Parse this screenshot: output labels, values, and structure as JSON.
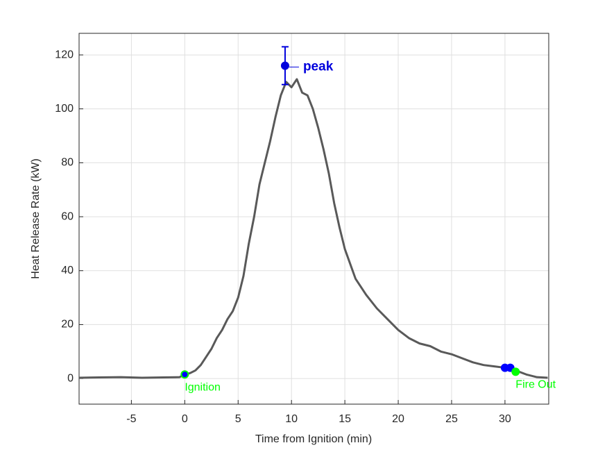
{
  "chart_data": {
    "type": "line",
    "xlabel": "Time from Ignition (min)",
    "ylabel": "Heat Release Rate (kW)",
    "x": [
      -9.9,
      -8,
      -6,
      -4,
      -2,
      -0.5,
      0,
      0.5,
      1,
      1.5,
      2,
      2.5,
      3,
      3.5,
      4,
      4.5,
      5,
      5.5,
      6,
      6.5,
      7,
      7.5,
      8,
      8.5,
      9,
      9.5,
      10,
      10.5,
      11,
      11.5,
      12,
      12.5,
      13,
      13.5,
      14,
      14.5,
      15,
      16,
      17,
      18,
      19,
      20,
      21,
      22,
      23,
      24,
      25,
      26,
      27,
      28,
      29,
      30,
      31,
      32,
      33,
      34
    ],
    "series": [
      {
        "color": "#595959",
        "values": [
          0.3,
          0.4,
          0.5,
          0.3,
          0.4,
          0.5,
          1.5,
          2,
          3,
          5,
          8,
          11,
          15,
          18,
          22,
          25,
          30,
          38,
          50,
          60,
          72,
          80,
          88,
          97,
          105,
          110,
          108,
          111,
          106,
          105,
          100,
          93,
          85,
          76,
          65,
          56,
          48,
          37,
          31,
          26,
          22,
          18,
          15,
          13,
          12,
          10,
          9,
          7.5,
          6,
          5,
          4.5,
          4,
          3,
          1.5,
          0.5,
          0.3
        ]
      }
    ],
    "markers": [
      {
        "x": 0,
        "y": 1.5,
        "color": "#0000ff",
        "edgecolor": "#00ff00",
        "label": "Ignition"
      },
      {
        "x": 9.4,
        "y": 116,
        "error": 7,
        "color": "#0000dd",
        "label": "peak"
      },
      {
        "x": 30,
        "y": 4,
        "color": "#0000ff"
      },
      {
        "x": 30.5,
        "y": 4,
        "color": "#0000ff"
      },
      {
        "x": 31,
        "y": 2.5,
        "color": "#00ff00",
        "label": "Fire Out"
      }
    ],
    "xlim": [
      -9.9,
      34.1
    ],
    "ylim": [
      -9.5,
      128
    ],
    "xticks": [
      -5,
      0,
      5,
      10,
      15,
      20,
      25,
      30
    ],
    "yticks": [
      0,
      20,
      40,
      60,
      80,
      100,
      120
    ],
    "grid": true
  }
}
